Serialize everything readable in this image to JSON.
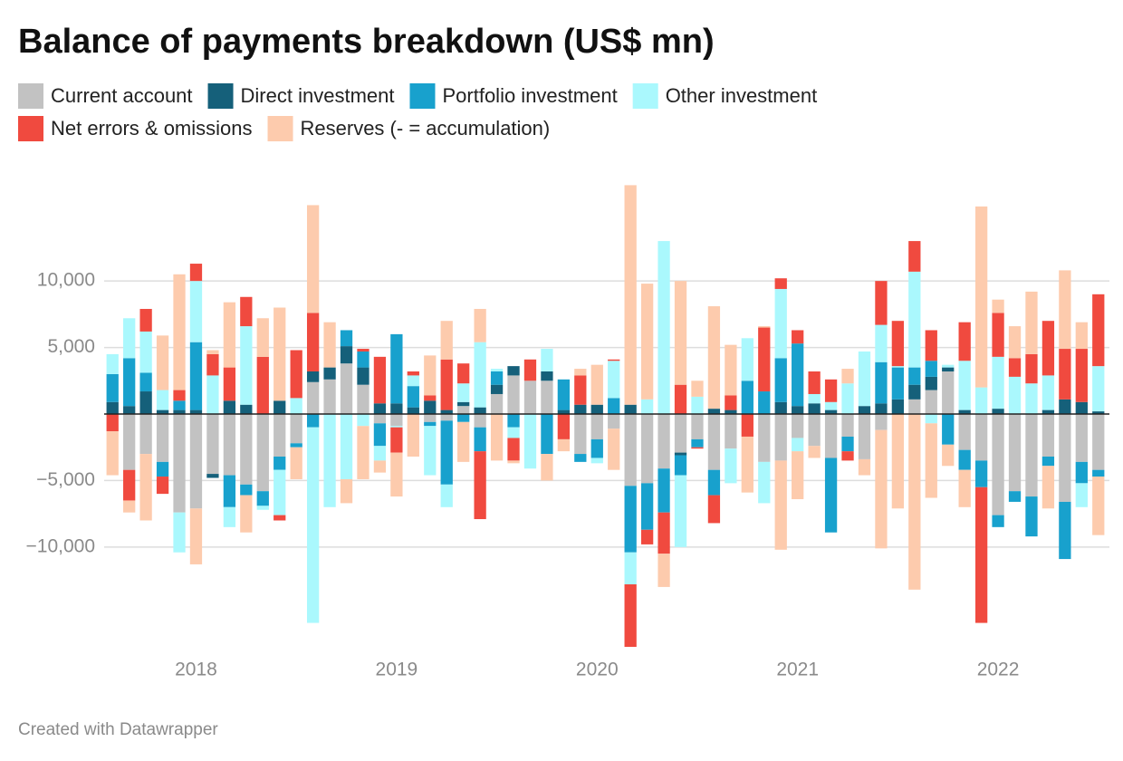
{
  "chart_data": {
    "type": "stacked_bar",
    "title": "Balance of payments breakdown (US$ mn)",
    "footer": "Created with Datawrapper",
    "categories": [
      null,
      null,
      null,
      null,
      null,
      "2018",
      null,
      null,
      null,
      null,
      null,
      null,
      null,
      null,
      null,
      null,
      null,
      "2019",
      null,
      null,
      null,
      null,
      null,
      null,
      null,
      null,
      null,
      null,
      null,
      "2020",
      null,
      null,
      null,
      null,
      null,
      null,
      null,
      null,
      null,
      null,
      null,
      "2021",
      null,
      null,
      null,
      null,
      null,
      null,
      null,
      null,
      null,
      null,
      null,
      "2022",
      null,
      null,
      null,
      null,
      null,
      null
    ],
    "ylim": [
      -17500,
      17500
    ],
    "yticks": [
      {
        "value": -10000,
        "label": "−10,000"
      },
      {
        "value": -5000,
        "label": "−5,000"
      },
      {
        "value": 5000,
        "label": "5,000"
      },
      {
        "value": 10000,
        "label": "10,000"
      }
    ],
    "grid": true,
    "legend": "top",
    "series": [
      {
        "name": "Current account",
        "color": "#c2c2c2",
        "values": [
          0,
          -4200,
          -3000,
          -3600,
          -7400,
          -7100,
          -4500,
          -4600,
          -5300,
          -5800,
          -3200,
          -2200,
          2400,
          2600,
          3800,
          2200,
          -700,
          -900,
          0,
          -600,
          -500,
          600,
          -1000,
          1500,
          2900,
          2500,
          2500,
          0,
          -3000,
          -1900,
          -1100,
          -5400,
          -5200,
          -4100,
          -2900,
          -1900,
          -4200,
          -2600,
          0,
          -3600,
          -3500,
          -1800,
          -2400,
          -3300,
          -1700,
          -3400,
          -1200,
          0,
          1100,
          1800,
          3200,
          -2700,
          -3500,
          -7600,
          -5800,
          -6200,
          -3200,
          -6600,
          -3600,
          -4200
        ]
      },
      {
        "name": "Direct investment",
        "color": "#15607a",
        "values": [
          900,
          600,
          1700,
          300,
          300,
          300,
          -300,
          1000,
          700,
          0,
          1000,
          0,
          800,
          900,
          1300,
          1300,
          800,
          800,
          500,
          1000,
          300,
          300,
          500,
          700,
          700,
          0,
          700,
          300,
          700,
          700,
          0,
          700,
          0,
          0,
          -200,
          0,
          400,
          300,
          0,
          0,
          900,
          600,
          800,
          300,
          0,
          600,
          800,
          1100,
          1100,
          1000,
          300,
          300,
          0,
          400,
          0,
          0,
          300,
          1100,
          900,
          200
        ]
      },
      {
        "name": "Portfolio investment",
        "color": "#18a1cd",
        "values": [
          2100,
          3600,
          1400,
          -1100,
          700,
          5100,
          0,
          -2400,
          -800,
          -1100,
          -1000,
          -300,
          -1000,
          0,
          1200,
          1200,
          -1700,
          5200,
          1600,
          -300,
          -4800,
          -600,
          -1800,
          1000,
          -1000,
          0,
          -3000,
          2300,
          -600,
          -1400,
          1200,
          -5000,
          -3500,
          -3300,
          -1500,
          -600,
          -1900,
          0,
          2500,
          1700,
          3300,
          4700,
          0,
          -5600,
          -1100,
          0,
          3100,
          2400,
          1300,
          1200,
          -2300,
          -1500,
          -2000,
          -900,
          -800,
          -3000,
          -700,
          -4300,
          -1600,
          -500
        ]
      },
      {
        "name": "Other investment",
        "color": "#aaf8fd",
        "values": [
          1500,
          3000,
          3100,
          1500,
          -3000,
          4600,
          2900,
          -1500,
          5900,
          -300,
          -3400,
          1200,
          -14700,
          -7000,
          -4900,
          -900,
          -1100,
          -100,
          800,
          -3700,
          -1700,
          1400,
          4900,
          200,
          -800,
          -4100,
          1700,
          0,
          0,
          -400,
          2800,
          -2400,
          1100,
          13000,
          -5400,
          1300,
          0,
          -2600,
          3200,
          -3100,
          5200,
          -1000,
          700,
          600,
          2300,
          4100,
          2800,
          100,
          7200,
          -700,
          200,
          3700,
          2000,
          3900,
          2800,
          2300,
          2600,
          0,
          -1800,
          3400
        ]
      },
      {
        "name": "Net errors & omissions",
        "color": "#f04a3f",
        "values": [
          -1300,
          -2300,
          1700,
          -1300,
          800,
          1300,
          1600,
          2500,
          2200,
          4300,
          -400,
          3600,
          4400,
          0,
          0,
          200,
          3500,
          -1900,
          300,
          400,
          3800,
          1500,
          -5100,
          0,
          -1700,
          1600,
          0,
          -1900,
          2200,
          0,
          100,
          -4700,
          -1100,
          -3100,
          2200,
          -100,
          -2100,
          1100,
          -1700,
          4800,
          800,
          1000,
          1700,
          1700,
          -700,
          0,
          3300,
          3400,
          2300,
          2300,
          0,
          2900,
          -10200,
          3300,
          1400,
          2200,
          4100,
          3800,
          4000,
          5400
        ]
      },
      {
        "name": "Reserves (- = accumulation)",
        "color": "#fdcbad",
        "values": [
          -3300,
          -900,
          -5000,
          4100,
          8700,
          -4200,
          300,
          4900,
          -2800,
          2900,
          7000,
          -2400,
          8100,
          3400,
          -1800,
          -4000,
          -900,
          -3300,
          -3200,
          3000,
          2900,
          -3000,
          2500,
          -3500,
          -200,
          0,
          -2000,
          -900,
          500,
          3000,
          -3100,
          16500,
          8700,
          -2500,
          7800,
          1200,
          7700,
          3800,
          -4200,
          100,
          -6700,
          -3600,
          -900,
          0,
          1100,
          -1200,
          -8900,
          -7100,
          -13200,
          -5600,
          -1600,
          -2800,
          13600,
          1000,
          2400,
          4700,
          -3200,
          5900,
          2000,
          -4400
        ]
      }
    ]
  }
}
